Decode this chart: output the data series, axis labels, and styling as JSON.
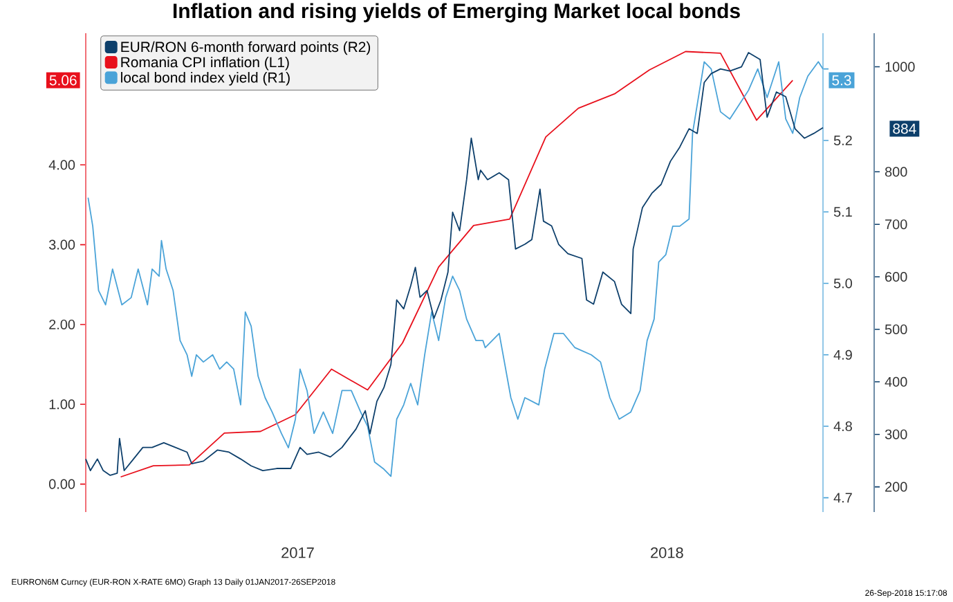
{
  "chart_data": {
    "type": "line",
    "title": "Inflation and rising yields of Emerging Market local bonds",
    "xlim": [
      "2017-01-01",
      "2018-09-26"
    ],
    "xticks": [
      {
        "value": "2017-07-02",
        "label": "2017"
      },
      {
        "value": "2018-05-15",
        "label": "2018"
      }
    ],
    "ylim": [
      -0.35,
      5.65
    ],
    "yticks": [
      {
        "value": 0,
        "label": "0.00"
      },
      {
        "value": 1,
        "label": "1.00"
      },
      {
        "value": 2,
        "label": "2.00"
      },
      {
        "value": 3,
        "label": "3.00"
      },
      {
        "value": 4,
        "label": "4.00"
      }
    ],
    "y2lim": [
      4.68,
      5.35
    ],
    "y2ticks": [
      4.7,
      4.8,
      4.9,
      {
        "value": 5,
        "label": "5.0"
      },
      5.1,
      5.2,
      {
        "value": 5.3,
        "label": null
      }
    ],
    "y3lim": [
      152,
      1064
    ],
    "y3ticks": [
      200,
      300,
      400,
      500,
      600,
      700,
      800,
      1000
    ],
    "legend": "top left",
    "annotations": [
      "5.06",
      "5.3",
      "884",
      "EURRON6M Curncy (EUR-RON X-RATE 6MO) Graph 13 Daily 01JAN2017-26SEP2018",
      "26-Sep-2018 15:17:08"
    ],
    "series": [
      {
        "name": "EUR/RON 6-month forward points (R2)",
        "color": "#0d3f6b",
        "axis": "y3",
        "x": [
          "2017-01-01",
          "2017-01-05",
          "2017-01-11",
          "2017-01-16",
          "2017-01-22",
          "2017-01-28",
          "2017-01-30",
          "2017-02-03",
          "2017-02-11",
          "2017-02-19",
          "2017-02-27",
          "2017-03-09",
          "2017-03-19",
          "2017-03-29",
          "2017-04-02",
          "2017-04-12",
          "2017-04-24",
          "2017-05-04",
          "2017-05-14",
          "2017-05-23",
          "2017-06-02",
          "2017-06-14",
          "2017-06-26",
          "2017-07-04",
          "2017-07-10",
          "2017-07-20",
          "2017-07-30",
          "2017-08-09",
          "2017-08-21",
          "2017-08-29",
          "2017-09-02",
          "2017-09-08",
          "2017-09-14",
          "2017-09-20",
          "2017-09-25",
          "2017-10-01",
          "2017-10-07",
          "2017-10-11",
          "2017-10-15",
          "2017-10-21",
          "2017-10-27",
          "2017-11-02",
          "2017-11-08",
          "2017-11-12",
          "2017-11-18",
          "2017-11-24",
          "2017-11-28",
          "2017-12-04",
          "2017-12-06",
          "2017-12-12",
          "2017-12-22",
          "2017-12-30",
          "2018-01-05",
          "2018-01-13",
          "2018-01-19",
          "2018-01-26",
          "2018-01-29",
          "2018-02-05",
          "2018-02-11",
          "2018-02-19",
          "2018-03-03",
          "2018-03-07",
          "2018-03-13",
          "2018-03-21",
          "2018-03-31",
          "2018-04-06",
          "2018-04-14",
          "2018-04-16",
          "2018-04-24",
          "2018-05-02",
          "2018-05-10",
          "2018-05-18",
          "2018-05-26",
          "2018-06-03",
          "2018-06-10",
          "2018-06-16",
          "2018-06-22",
          "2018-06-30",
          "2018-07-08",
          "2018-07-18",
          "2018-07-24",
          "2018-08-03",
          "2018-08-09",
          "2018-08-17",
          "2018-08-25",
          "2018-09-02",
          "2018-09-10",
          "2018-09-18",
          "2018-09-26"
        ],
        "values": [
          253,
          231,
          253,
          231,
          222,
          226,
          292,
          231,
          253,
          275,
          275,
          284,
          275,
          266,
          244,
          249,
          270,
          266,
          253,
          240,
          231,
          235,
          235,
          275,
          262,
          266,
          257,
          275,
          310,
          345,
          301,
          363,
          389,
          433,
          556,
          539,
          583,
          618,
          561,
          574,
          521,
          556,
          609,
          723,
          688,
          785,
          864,
          785,
          803,
          785,
          798,
          785,
          653,
          662,
          671,
          767,
          706,
          697,
          662,
          644,
          635,
          556,
          548,
          609,
          591,
          548,
          530,
          653,
          732,
          759,
          776,
          820,
          847,
          882,
          873,
          970,
          987,
          996,
          992,
          1000,
          1027,
          1014,
          904,
          952,
          943,
          882,
          864,
          873,
          884
        ]
      },
      {
        "name": "Romania CPI inflation (L1)",
        "color": "#e8101c",
        "axis": "y",
        "x": [
          "2017-01-31",
          "2017-02-28",
          "2017-03-31",
          "2017-04-30",
          "2017-05-31",
          "2017-06-30",
          "2017-07-31",
          "2017-08-31",
          "2017-09-30",
          "2017-10-31",
          "2017-11-30",
          "2017-12-31",
          "2018-01-31",
          "2018-02-28",
          "2018-03-31",
          "2018-04-30",
          "2018-05-31",
          "2018-06-30",
          "2018-07-31",
          "2018-08-31"
        ],
        "values": [
          0.09,
          0.23,
          0.24,
          0.64,
          0.66,
          0.87,
          1.44,
          1.18,
          1.77,
          2.72,
          3.24,
          3.32,
          4.35,
          4.71,
          4.89,
          5.19,
          5.42,
          5.4,
          4.56,
          5.06
        ]
      },
      {
        "name": "local bond index yield (R1)",
        "color": "#4aa3d8",
        "axis": "y2",
        "x": [
          "2017-01-03",
          "2017-01-07",
          "2017-01-12",
          "2017-01-18",
          "2017-01-24",
          "2017-02-01",
          "2017-02-09",
          "2017-02-15",
          "2017-02-23",
          "2017-02-27",
          "2017-03-05",
          "2017-03-07",
          "2017-03-11",
          "2017-03-17",
          "2017-03-23",
          "2017-03-29",
          "2017-04-02",
          "2017-04-06",
          "2017-04-12",
          "2017-04-20",
          "2017-04-26",
          "2017-05-02",
          "2017-05-08",
          "2017-05-14",
          "2017-05-18",
          "2017-05-23",
          "2017-05-29",
          "2017-06-04",
          "2017-06-10",
          "2017-06-18",
          "2017-06-24",
          "2017-06-30",
          "2017-07-04",
          "2017-07-10",
          "2017-07-16",
          "2017-07-24",
          "2017-08-01",
          "2017-08-09",
          "2017-08-17",
          "2017-08-25",
          "2017-08-31",
          "2017-09-06",
          "2017-09-14",
          "2017-09-20",
          "2017-09-25",
          "2017-10-01",
          "2017-10-07",
          "2017-10-13",
          "2017-10-19",
          "2017-10-25",
          "2017-10-31",
          "2017-11-06",
          "2017-11-12",
          "2017-11-18",
          "2017-11-24",
          "2017-12-02",
          "2017-12-08",
          "2017-12-10",
          "2017-12-22",
          "2018-01-01",
          "2018-01-07",
          "2018-01-13",
          "2018-01-25",
          "2018-01-30",
          "2018-02-07",
          "2018-02-15",
          "2018-02-25",
          "2018-03-11",
          "2018-03-19",
          "2018-03-27",
          "2018-04-04",
          "2018-04-14",
          "2018-04-22",
          "2018-04-28",
          "2018-05-04",
          "2018-05-08",
          "2018-05-14",
          "2018-05-20",
          "2018-05-26",
          "2018-06-03",
          "2018-06-06",
          "2018-06-12",
          "2018-06-16",
          "2018-06-22",
          "2018-06-30",
          "2018-07-08",
          "2018-07-16",
          "2018-07-24",
          "2018-08-01",
          "2018-08-09",
          "2018-08-19",
          "2018-08-25",
          "2018-08-31",
          "2018-09-06",
          "2018-09-13",
          "2018-09-22",
          "2018-09-26"
        ],
        "values": [
          5.12,
          5.08,
          4.99,
          4.97,
          5.02,
          4.97,
          4.98,
          5.02,
          4.97,
          5.02,
          5.01,
          5.06,
          5.02,
          4.99,
          4.92,
          4.9,
          4.87,
          4.9,
          4.89,
          4.9,
          4.88,
          4.89,
          4.88,
          4.83,
          4.96,
          4.94,
          4.87,
          4.84,
          4.82,
          4.79,
          4.77,
          4.81,
          4.88,
          4.85,
          4.79,
          4.82,
          4.79,
          4.85,
          4.85,
          4.82,
          4.8,
          4.75,
          4.74,
          4.73,
          4.81,
          4.83,
          4.86,
          4.83,
          4.9,
          4.96,
          4.92,
          4.98,
          5.01,
          4.99,
          4.95,
          4.92,
          4.92,
          4.91,
          4.93,
          4.84,
          4.81,
          4.84,
          4.83,
          4.88,
          4.93,
          4.93,
          4.91,
          4.9,
          4.89,
          4.84,
          4.81,
          4.82,
          4.85,
          4.92,
          4.95,
          5.03,
          5.04,
          5.08,
          5.08,
          5.09,
          5.21,
          5.27,
          5.31,
          5.3,
          5.24,
          5.23,
          5.25,
          5.27,
          5.3,
          5.26,
          5.31,
          5.23,
          5.21,
          5.26,
          5.29,
          5.31,
          5.3
        ]
      }
    ]
  }
}
